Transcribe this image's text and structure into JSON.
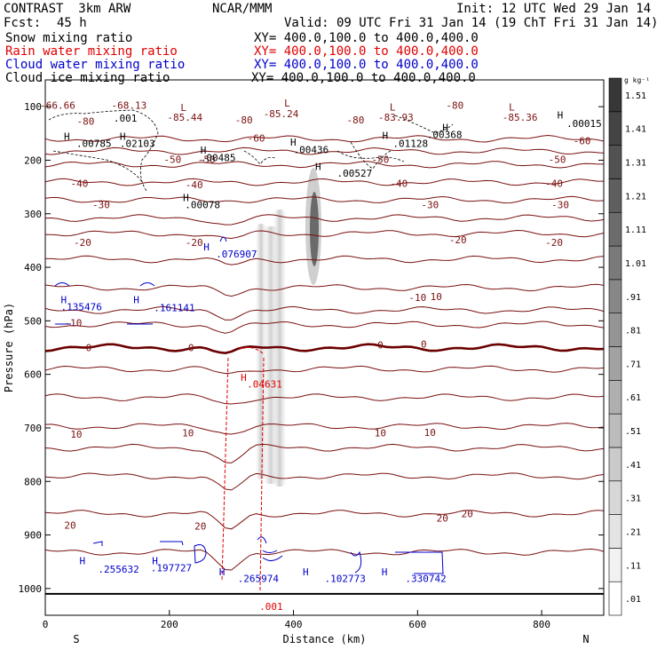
{
  "header": {
    "model": "CONTRAST  3km ARW",
    "org": "NCAR/MMM",
    "init": "Init: 12 UTC Wed 29 Jan 14",
    "fcst_label": "Fcst:",
    "fcst_value": "45 h",
    "valid": "Valid: 09 UTC Fri 31 Jan 14 (19 ChT Fri 31 Jan 14)"
  },
  "fields": [
    {
      "name": "Snow mixing ratio",
      "xy": "XY= 400.0,100.0 to 400.0,400.0",
      "color": "#000000"
    },
    {
      "name": "Rain water mixing ratio",
      "xy": "XY= 400.0,100.0 to 400.0,400.0",
      "color": "#e00000"
    },
    {
      "name": "Cloud water mixing ratio",
      "xy": "XY= 400.0,100.0 to 400.0,400.0",
      "color": "#0000cc"
    },
    {
      "name": "Cloud ice mixing ratio",
      "xy": "XY= 400.0,100.0 to 400.0,400.0",
      "color": "#000000"
    }
  ],
  "colors": {
    "temperature": "#7a1010",
    "temperature_zero": "#6b0000",
    "rain": "#e00000",
    "cloud_water": "#0000cc",
    "ice": "#000000"
  },
  "chart_data": {
    "type": "cross-section",
    "xlabel": "Distance (km)",
    "ylabel": "Pressure (hPa)",
    "xlim": [
      0,
      900
    ],
    "ylim": [
      1050,
      50
    ],
    "x_ticks": [
      0,
      200,
      400,
      600,
      800
    ],
    "y_ticks": [
      100,
      200,
      300,
      400,
      500,
      600,
      700,
      800,
      900,
      1000
    ],
    "end_labels": {
      "left": "S",
      "right": "N"
    },
    "colorbar": {
      "units": "g kg⁻¹",
      "levels": [
        ".01",
        ".11",
        ".21",
        ".31",
        ".41",
        ".51",
        ".61",
        ".71",
        ".81",
        ".91",
        "1.01",
        "1.11",
        "1.21",
        "1.31",
        "1.41",
        "1.51"
      ]
    },
    "isotherms": [
      {
        "value": -60,
        "base_p": 160
      },
      {
        "value": -50,
        "base_p": 183
      },
      {
        "value": -40,
        "base_p": 208
      },
      {
        "value": -30,
        "base_p": 241
      },
      {
        "value": -20,
        "base_p": 274
      },
      {
        "value": -10,
        "base_p": 308
      },
      {
        "value": -10,
        "base_p": 337
      },
      {
        "value": -10,
        "base_p": 385
      },
      {
        "value": -10,
        "base_p": 438
      },
      {
        "value": -10,
        "base_p": 480
      },
      {
        "value": 0,
        "base_p": 507
      },
      {
        "value": 0,
        "base_p": 550,
        "bold": true
      },
      {
        "value": 0,
        "base_p": 590
      },
      {
        "value": 10,
        "base_p": 643
      },
      {
        "value": 10,
        "base_p": 697
      },
      {
        "value": 10,
        "base_p": 737
      },
      {
        "value": 20,
        "base_p": 790
      },
      {
        "value": 20,
        "base_p": 860
      },
      {
        "value": 20,
        "base_p": 932
      }
    ],
    "temp_labels": [
      {
        "text": "-66.66",
        "x": 20,
        "p": 104
      },
      {
        "text": "-68.13",
        "x": 135,
        "p": 104
      },
      {
        "text": "-80",
        "x": 65,
        "p": 134
      },
      {
        "text": "-80",
        "x": 320,
        "p": 131
      },
      {
        "text": "-80",
        "x": 500,
        "p": 131
      },
      {
        "text": "-80",
        "x": 660,
        "p": 104
      },
      {
        "text": "-85.44",
        "x": 225,
        "p": 126
      },
      {
        "text": "-85.24",
        "x": 380,
        "p": 120
      },
      {
        "text": "-83.93",
        "x": 565,
        "p": 126
      },
      {
        "text": "-85.36",
        "x": 765,
        "p": 126
      },
      {
        "text": "-60",
        "x": 340,
        "p": 165
      },
      {
        "text": "-60",
        "x": 865,
        "p": 170
      },
      {
        "text": "-50",
        "x": 205,
        "p": 205
      },
      {
        "text": "-50",
        "x": 260,
        "p": 205
      },
      {
        "text": "-50",
        "x": 540,
        "p": 205
      },
      {
        "text": "-50",
        "x": 825,
        "p": 205
      },
      {
        "text": "-40",
        "x": 55,
        "p": 250
      },
      {
        "text": "-40",
        "x": 240,
        "p": 252
      },
      {
        "text": "-40",
        "x": 570,
        "p": 250
      },
      {
        "text": "-40",
        "x": 820,
        "p": 250
      },
      {
        "text": "-30",
        "x": 90,
        "p": 290
      },
      {
        "text": "-30",
        "x": 620,
        "p": 290
      },
      {
        "text": "-30",
        "x": 830,
        "p": 290
      },
      {
        "text": "-20",
        "x": 60,
        "p": 360
      },
      {
        "text": "-20",
        "x": 240,
        "p": 360
      },
      {
        "text": "-20",
        "x": 665,
        "p": 355
      },
      {
        "text": "-20",
        "x": 820,
        "p": 360
      },
      {
        "text": "-10",
        "x": 45,
        "p": 510
      },
      {
        "text": "-10",
        "x": 600,
        "p": 463
      },
      {
        "text": "10",
        "x": 630,
        "p": 461
      },
      {
        "text": "0",
        "x": 70,
        "p": 557
      },
      {
        "text": "0",
        "x": 235,
        "p": 557
      },
      {
        "text": "0",
        "x": 610,
        "p": 550
      },
      {
        "text": "0",
        "x": 540,
        "p": 552
      },
      {
        "text": "10",
        "x": 50,
        "p": 718
      },
      {
        "text": "10",
        "x": 230,
        "p": 716
      },
      {
        "text": "10",
        "x": 620,
        "p": 715
      },
      {
        "text": "10",
        "x": 540,
        "p": 716
      },
      {
        "text": "20",
        "x": 40,
        "p": 888
      },
      {
        "text": "20",
        "x": 250,
        "p": 890
      },
      {
        "text": "20",
        "x": 640,
        "p": 875
      },
      {
        "text": "20",
        "x": 680,
        "p": 867
      }
    ],
    "lows": [
      {
        "x": 218,
        "p": 108
      },
      {
        "x": 385,
        "p": 100
      },
      {
        "x": 555,
        "p": 107
      },
      {
        "x": 747,
        "p": 107
      }
    ],
    "ice_labels": [
      {
        "text": ".00785",
        "x": 50,
        "p": 175
      },
      {
        "text": ".02103",
        "x": 120,
        "p": 175
      },
      {
        "text": ".00485",
        "x": 250,
        "p": 202
      },
      {
        "text": ".00436",
        "x": 400,
        "p": 187
      },
      {
        "text": ".01128",
        "x": 560,
        "p": 175
      },
      {
        "text": ".00368",
        "x": 615,
        "p": 159
      },
      {
        "text": ".00015",
        "x": 840,
        "p": 138
      },
      {
        "text": ".00527",
        "x": 470,
        "p": 231
      },
      {
        "text": ".00078",
        "x": 225,
        "p": 290
      },
      {
        "text": ".001",
        "x": 110,
        "p": 128
      }
    ],
    "cloud_labels": [
      {
        "text": ".076907",
        "x": 275,
        "p": 382
      },
      {
        "text": ".135476",
        "x": 25,
        "p": 480
      },
      {
        "text": ".161141",
        "x": 175,
        "p": 482
      },
      {
        "text": ".255632",
        "x": 85,
        "p": 970
      },
      {
        "text": ".197727",
        "x": 170,
        "p": 968
      },
      {
        "text": ".265974",
        "x": 310,
        "p": 988
      },
      {
        "text": ".102773",
        "x": 450,
        "p": 988
      },
      {
        "text": ".330742",
        "x": 580,
        "p": 988
      }
    ],
    "rain_labels": [
      {
        "text": ".04631",
        "x": 325,
        "p": 625
      },
      {
        "text": ".001",
        "x": 345,
        "p": 1040
      }
    ],
    "H_markers": [
      {
        "x": 30,
        "p": 162,
        "color": "ice"
      },
      {
        "x": 120,
        "p": 162,
        "color": "ice"
      },
      {
        "x": 250,
        "p": 188,
        "color": "ice"
      },
      {
        "x": 395,
        "p": 173,
        "color": "ice"
      },
      {
        "x": 543,
        "p": 160,
        "color": "ice"
      },
      {
        "x": 640,
        "p": 145,
        "color": "ice"
      },
      {
        "x": 825,
        "p": 122,
        "color": "ice"
      },
      {
        "x": 435,
        "p": 218,
        "color": "ice"
      },
      {
        "x": 222,
        "p": 276,
        "color": "ice"
      },
      {
        "x": 255,
        "p": 368,
        "color": "cloud"
      },
      {
        "x": 25,
        "p": 467,
        "color": "cloud"
      },
      {
        "x": 142,
        "p": 467,
        "color": "cloud"
      },
      {
        "x": 55,
        "p": 955,
        "color": "cloud"
      },
      {
        "x": 172,
        "p": 955,
        "color": "cloud"
      },
      {
        "x": 280,
        "p": 975,
        "color": "cloud"
      },
      {
        "x": 415,
        "p": 975,
        "color": "cloud"
      },
      {
        "x": 542,
        "p": 975,
        "color": "cloud"
      },
      {
        "x": 315,
        "p": 612,
        "color": "rain"
      }
    ]
  }
}
